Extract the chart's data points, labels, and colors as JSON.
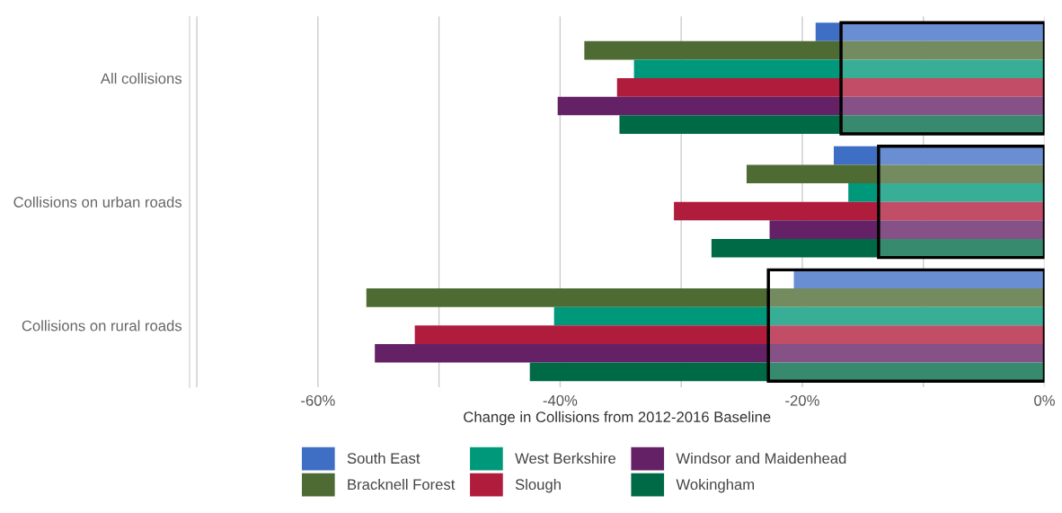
{
  "chart_data": {
    "type": "bar",
    "orientation": "horizontal",
    "xlabel": "Change in Collisions from 2012-2016 Baseline",
    "categories": [
      "All collisions",
      "Collisions on urban roads",
      "Collisions on rural roads"
    ],
    "series": [
      {
        "name": "South East",
        "color": "#3f6fc4",
        "values": [
          -18.9,
          -17.4,
          -20.7
        ]
      },
      {
        "name": "Bracknell Forest",
        "color": "#4e6b34",
        "values": [
          -38.0,
          -24.6,
          -56.0
        ]
      },
      {
        "name": "West Berkshire",
        "color": "#00987a",
        "values": [
          -33.9,
          -16.2,
          -40.5
        ]
      },
      {
        "name": "Slough",
        "color": "#b01c3c",
        "values": [
          -35.3,
          -30.6,
          -52.0
        ]
      },
      {
        "name": "Windsor and Maidenhead",
        "color": "#642165",
        "values": [
          -40.2,
          -22.7,
          -55.3
        ]
      },
      {
        "name": "Wokingham",
        "color": "#006a46",
        "values": [
          -35.1,
          -27.5,
          -42.5
        ]
      },
      {
        "type": "bar",
        "color": "#ffffff",
        "values": [
          -16.8,
          -13.7,
          -22.8
        ]
      }
    ],
    "xlim": [
      -70.6,
      0
    ],
    "xticks": [
      {
        "value": -70,
        "label": null
      },
      {
        "value": -60,
        "label": "-60%"
      },
      {
        "value": -50,
        "label": null
      },
      {
        "value": -40,
        "label": "-40%"
      },
      {
        "value": -30,
        "label": null
      },
      {
        "value": -20,
        "label": "-20%"
      },
      {
        "value": -10,
        "label": null
      },
      {
        "value": 0,
        "label": "0%"
      }
    ],
    "grid": "x",
    "legend": "bottom"
  }
}
